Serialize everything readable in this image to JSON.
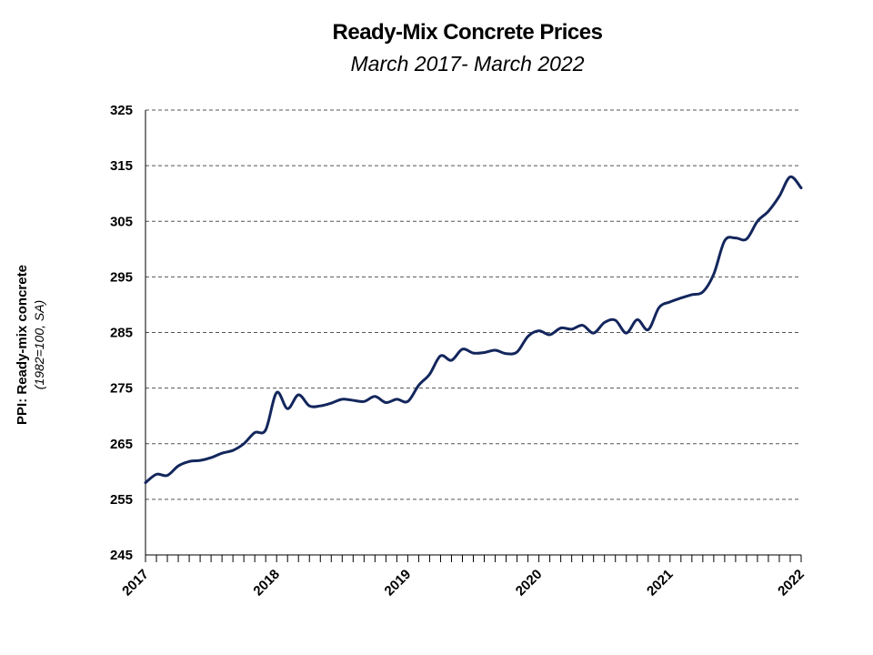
{
  "chart_data": {
    "type": "line",
    "title": "Ready-Mix Concrete Prices",
    "subtitle": "March 2017- March 2022",
    "ylabel": "PPI: Ready-mix concrete",
    "ylabel_sub": "(1982=100, SA)",
    "xlabel": "",
    "ylim": [
      245,
      325
    ],
    "yticks": [
      245,
      255,
      265,
      275,
      285,
      295,
      305,
      315,
      325
    ],
    "x_tick_labels": [
      "2017",
      "2018",
      "2019",
      "2020",
      "2021",
      "2022"
    ],
    "grid": "horizontal dashed",
    "legend": "none",
    "line_color": "#13265c",
    "series": [
      {
        "values": [
          258.0,
          259.5,
          259.3,
          261.0,
          261.8,
          262.0,
          262.5,
          263.3,
          263.8,
          265.0,
          267.0,
          267.5,
          274.2,
          271.3,
          273.8,
          271.8,
          271.8,
          272.3,
          273.0,
          272.8,
          272.6,
          273.5,
          272.4,
          273.0,
          272.6,
          275.5,
          277.5,
          280.8,
          280.0,
          282.0,
          281.3,
          281.4,
          281.8,
          281.2,
          281.5,
          284.3,
          285.3,
          284.6,
          285.8,
          285.6,
          286.3,
          284.9,
          286.8,
          287.2,
          284.9,
          287.3,
          285.5,
          289.5,
          290.5,
          291.2,
          291.8,
          292.3,
          295.5,
          301.5,
          302.0,
          301.8,
          305.0,
          306.8,
          309.5,
          313.0,
          311.0
        ]
      }
    ]
  }
}
